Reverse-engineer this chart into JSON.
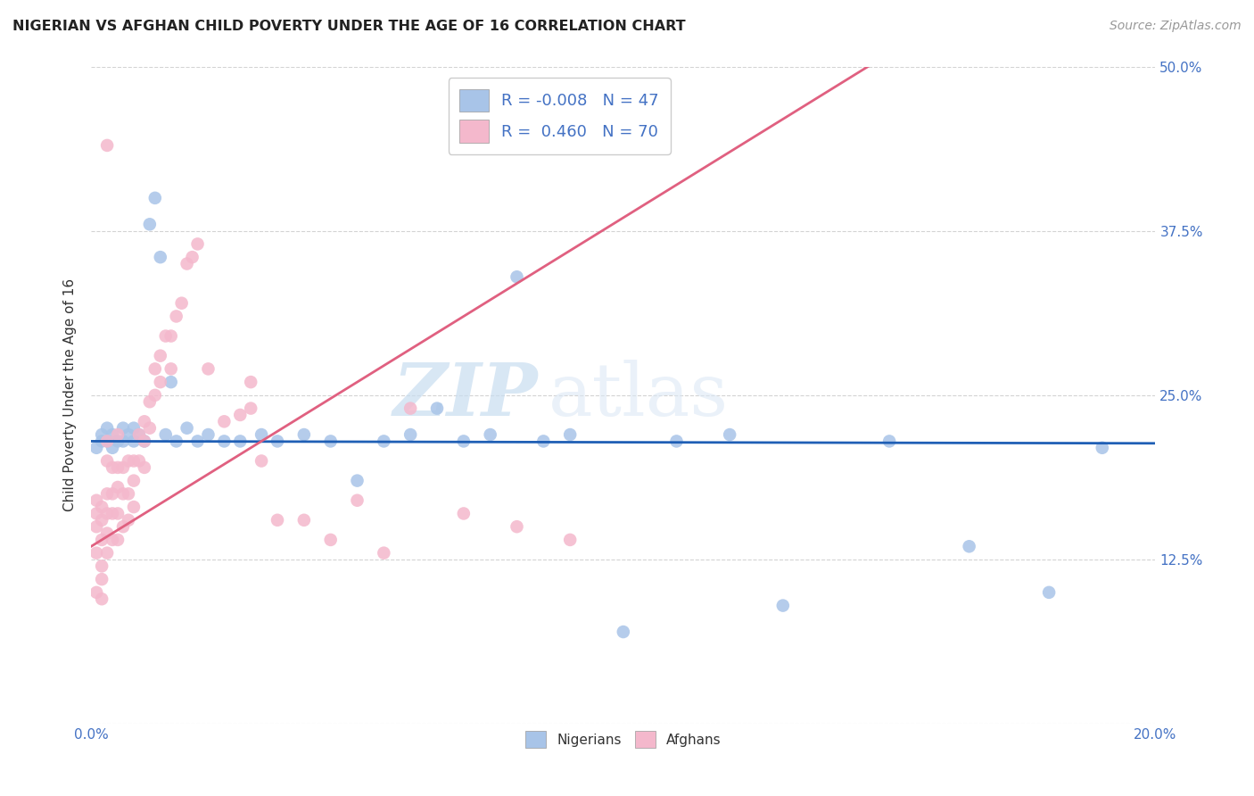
{
  "title": "NIGERIAN VS AFGHAN CHILD POVERTY UNDER THE AGE OF 16 CORRELATION CHART",
  "source": "Source: ZipAtlas.com",
  "ylabel": "Child Poverty Under the Age of 16",
  "xlim": [
    0.0,
    0.2
  ],
  "ylim": [
    0.0,
    0.5
  ],
  "xticks": [
    0.0,
    0.04,
    0.08,
    0.12,
    0.16,
    0.2
  ],
  "xticklabels": [
    "0.0%",
    "",
    "",
    "",
    "",
    "20.0%"
  ],
  "yticks": [
    0.0,
    0.125,
    0.25,
    0.375,
    0.5
  ],
  "yticklabels": [
    "",
    "12.5%",
    "25.0%",
    "37.5%",
    "50.0%"
  ],
  "grid_color": "#c8c8c8",
  "background_color": "#ffffff",
  "watermark_zip": "ZIP",
  "watermark_atlas": "atlas",
  "nigerian_color": "#a8c4e8",
  "afghan_color": "#f4b8cc",
  "nigerian_line_color": "#1f5fb5",
  "afghan_line_color": "#e06080",
  "legend_line1": "R = -0.008   N = 47",
  "legend_line2": "R =  0.460   N = 70",
  "nigerian_x": [
    0.001,
    0.002,
    0.002,
    0.003,
    0.003,
    0.004,
    0.004,
    0.005,
    0.006,
    0.006,
    0.007,
    0.008,
    0.008,
    0.009,
    0.01,
    0.011,
    0.012,
    0.013,
    0.014,
    0.015,
    0.016,
    0.018,
    0.02,
    0.022,
    0.025,
    0.028,
    0.032,
    0.035,
    0.04,
    0.045,
    0.05,
    0.055,
    0.06,
    0.065,
    0.07,
    0.075,
    0.08,
    0.085,
    0.09,
    0.1,
    0.11,
    0.12,
    0.13,
    0.15,
    0.165,
    0.18,
    0.19
  ],
  "nigerian_y": [
    0.21,
    0.215,
    0.22,
    0.215,
    0.225,
    0.21,
    0.22,
    0.215,
    0.215,
    0.225,
    0.22,
    0.215,
    0.225,
    0.22,
    0.215,
    0.38,
    0.4,
    0.355,
    0.22,
    0.26,
    0.215,
    0.225,
    0.215,
    0.22,
    0.215,
    0.215,
    0.22,
    0.215,
    0.22,
    0.215,
    0.185,
    0.215,
    0.22,
    0.24,
    0.215,
    0.22,
    0.34,
    0.215,
    0.22,
    0.07,
    0.215,
    0.22,
    0.09,
    0.215,
    0.135,
    0.1,
    0.21
  ],
  "afghan_x": [
    0.001,
    0.001,
    0.001,
    0.001,
    0.001,
    0.002,
    0.002,
    0.002,
    0.002,
    0.002,
    0.002,
    0.003,
    0.003,
    0.003,
    0.003,
    0.003,
    0.003,
    0.003,
    0.004,
    0.004,
    0.004,
    0.004,
    0.005,
    0.005,
    0.005,
    0.005,
    0.005,
    0.006,
    0.006,
    0.006,
    0.007,
    0.007,
    0.007,
    0.008,
    0.008,
    0.008,
    0.009,
    0.009,
    0.01,
    0.01,
    0.01,
    0.011,
    0.011,
    0.012,
    0.012,
    0.013,
    0.013,
    0.014,
    0.015,
    0.015,
    0.016,
    0.017,
    0.018,
    0.019,
    0.02,
    0.022,
    0.025,
    0.028,
    0.03,
    0.032,
    0.035,
    0.04,
    0.045,
    0.05,
    0.055,
    0.06,
    0.07,
    0.08,
    0.09,
    0.03
  ],
  "afghan_y": [
    0.13,
    0.15,
    0.16,
    0.17,
    0.1,
    0.12,
    0.14,
    0.155,
    0.165,
    0.11,
    0.095,
    0.13,
    0.145,
    0.16,
    0.175,
    0.2,
    0.215,
    0.44,
    0.14,
    0.16,
    0.175,
    0.195,
    0.14,
    0.16,
    0.18,
    0.195,
    0.22,
    0.15,
    0.175,
    0.195,
    0.155,
    0.175,
    0.2,
    0.165,
    0.185,
    0.2,
    0.2,
    0.22,
    0.195,
    0.215,
    0.23,
    0.225,
    0.245,
    0.25,
    0.27,
    0.28,
    0.26,
    0.295,
    0.27,
    0.295,
    0.31,
    0.32,
    0.35,
    0.355,
    0.365,
    0.27,
    0.23,
    0.235,
    0.26,
    0.2,
    0.155,
    0.155,
    0.14,
    0.17,
    0.13,
    0.24,
    0.16,
    0.15,
    0.14,
    0.24
  ],
  "nigerian_regression": [
    -0.008,
    0.215
  ],
  "afghan_regression": [
    2.5,
    0.135
  ]
}
